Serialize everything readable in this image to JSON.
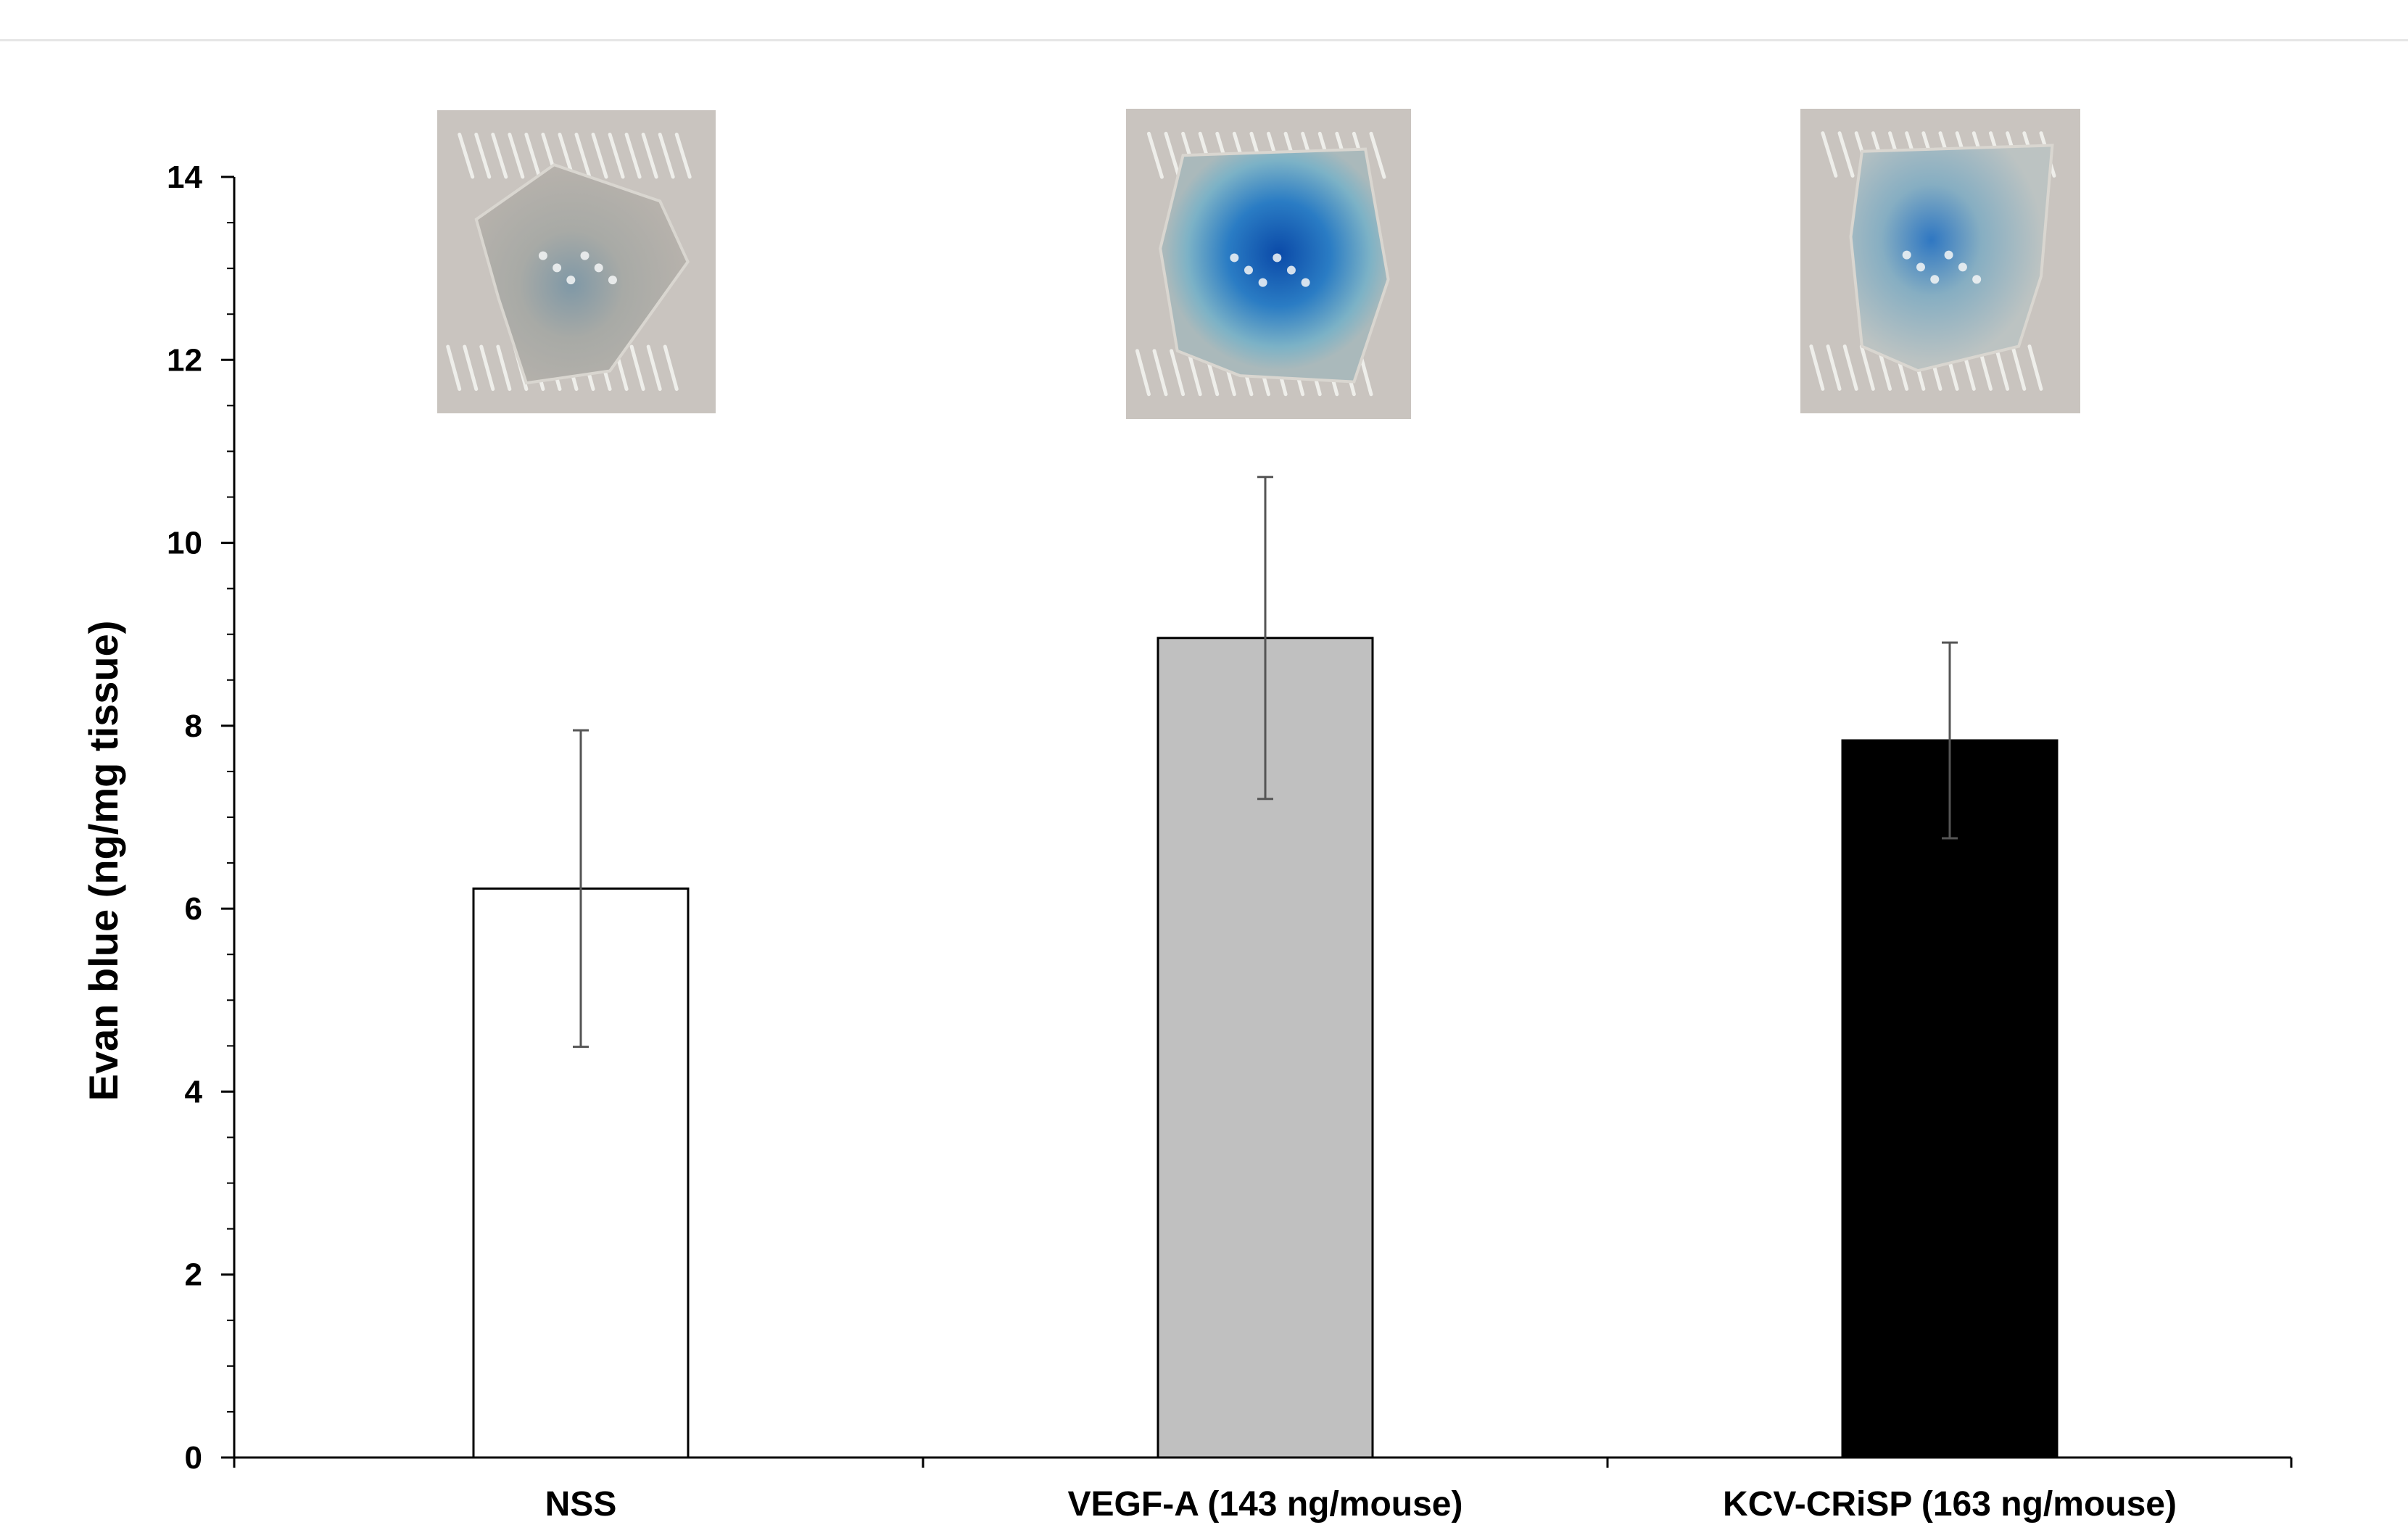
{
  "chart_data": {
    "type": "bar",
    "ylabel": "Evan blue (ng/mg tissue)",
    "xlabel": "",
    "ylim": [
      0,
      14
    ],
    "yticks": [
      0,
      2,
      4,
      6,
      8,
      10,
      12,
      14
    ],
    "yticks_minor_step": 0.5,
    "grid": false,
    "categories": [
      "NSS",
      "VEGF-A (143 ng/mouse)",
      "KCV-CRiSP (163 ng/mouse)"
    ],
    "values": [
      6.22,
      8.96,
      7.84
    ],
    "error": [
      1.73,
      1.76,
      1.07
    ],
    "bar_colors": [
      "#ffffff",
      "#c0c0c0",
      "#000000"
    ],
    "insets": [
      {
        "category": "NSS",
        "dye": "faint"
      },
      {
        "category": "VEGF-A (143 ng/mouse)",
        "dye": "strong"
      },
      {
        "category": "KCV-CRiSP (163 ng/mouse)",
        "dye": "moderate"
      }
    ]
  }
}
